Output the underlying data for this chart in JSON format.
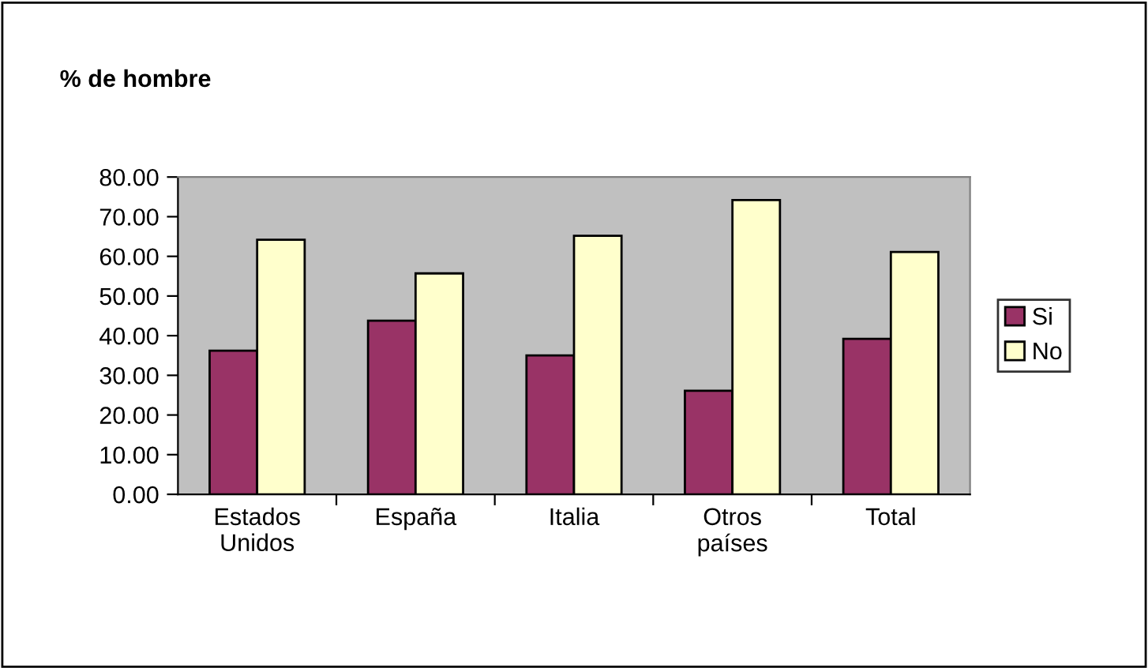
{
  "chart_data": {
    "type": "bar",
    "title": "% de hombre",
    "categories": [
      "Estados\nUnidos",
      "España",
      "Italia",
      "Otros\npaíses",
      "Total"
    ],
    "series": [
      {
        "name": "Si",
        "color": "#993366",
        "values": [
          36.2,
          43.8,
          35.0,
          26.1,
          39.2
        ]
      },
      {
        "name": "No",
        "color": "#ffffcc",
        "values": [
          64.2,
          55.7,
          65.2,
          74.2,
          61.1
        ]
      }
    ],
    "ylim": [
      0,
      80
    ],
    "yticks": [
      {
        "value": 0,
        "label": "0.00"
      },
      {
        "value": 10,
        "label": "10.00"
      },
      {
        "value": 20,
        "label": "20.00"
      },
      {
        "value": 30,
        "label": "30.00"
      },
      {
        "value": 40,
        "label": "40.00"
      },
      {
        "value": 50,
        "label": "50.00"
      },
      {
        "value": 60,
        "label": "60.00"
      },
      {
        "value": 70,
        "label": "70.00"
      },
      {
        "value": 80,
        "label": "80.00"
      }
    ],
    "grid": false,
    "legend": "right"
  }
}
